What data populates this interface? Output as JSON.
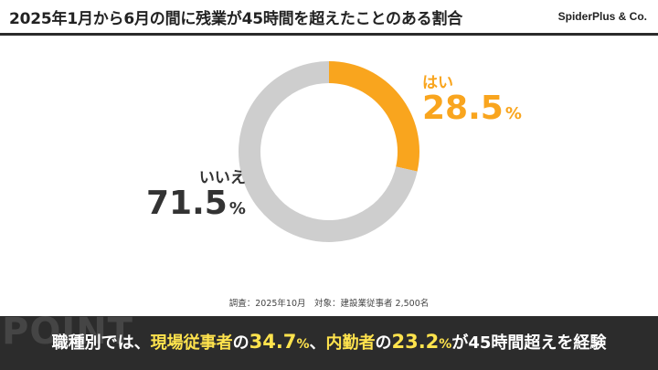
{
  "header": {
    "title": "2025年1月から6月の間に残業が45時間を超えたことのある割合",
    "brand": "SpiderPlus & Co."
  },
  "chart_data": {
    "type": "pie",
    "donut": true,
    "slices": [
      {
        "name": "はい",
        "value": 28.5,
        "unit": "%",
        "color": "#F9A51E"
      },
      {
        "name": "いいえ",
        "value": 71.5,
        "unit": "%",
        "color": "#CECECE"
      }
    ]
  },
  "footer": {
    "source": "調査：2025年10月　対象：建設業従事者 2,500名"
  },
  "point": {
    "watermark": "POINT",
    "prefix": "職種別では、",
    "group1": "現場従事者",
    "particle1": "の",
    "value1": "34.7",
    "unit1": "%",
    "sep": "、",
    "group2": "内勤者",
    "particle2": "の",
    "value2": "23.2",
    "unit2": "%",
    "suffix": "が45時間超えを経験"
  }
}
